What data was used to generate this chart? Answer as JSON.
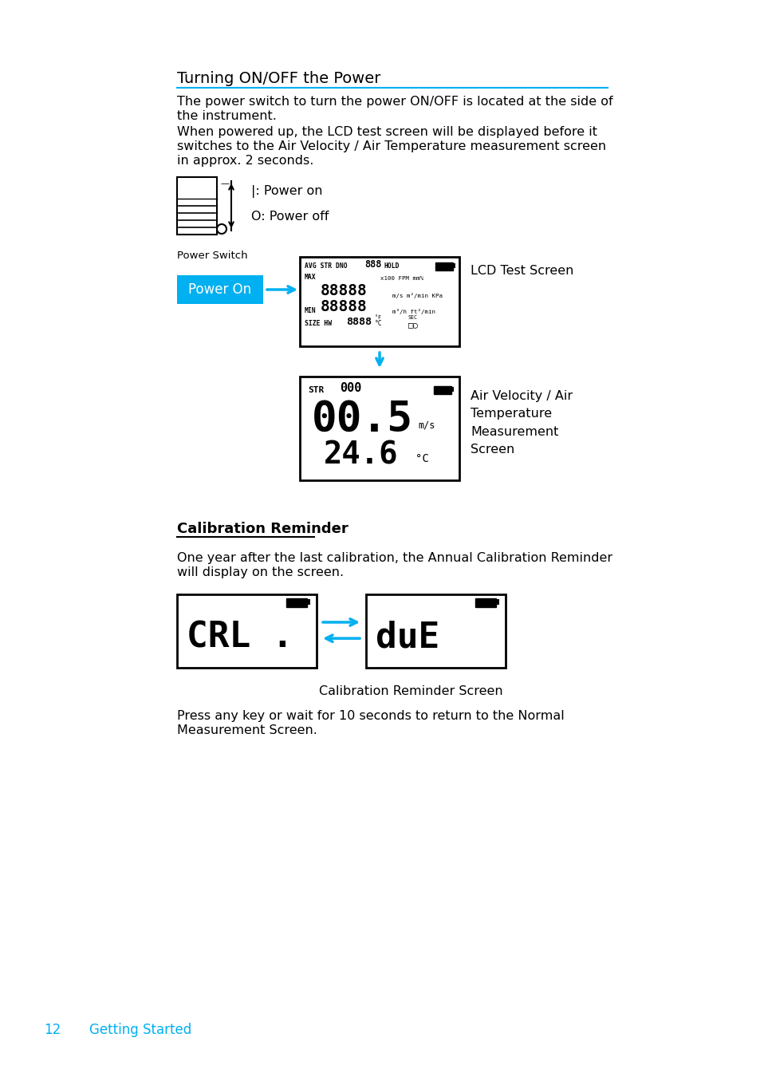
{
  "bg_color": "#ffffff",
  "cyan_color": "#00b0f0",
  "black": "#000000",
  "title": "Turning ON/OFF the Power",
  "para1_line1": "The power switch to turn the power ON/OFF is located at the side of",
  "para1_line2": "the instrument.",
  "para2_line1": "When powered up, the LCD test screen will be displayed before it",
  "para2_line2": "switches to the Air Velocity / Air Temperature measurement screen",
  "para2_line3": "in approx. 2 seconds.",
  "power_on_label1": "|: Power on",
  "power_on_label2": "O: Power off",
  "power_switch_label": "Power Switch",
  "lcd_test_label": "LCD Test Screen",
  "air_vel_label": [
    "Air Velocity / Air",
    "Temperature",
    "Measurement",
    "Screen"
  ],
  "cal_title": "Calibration Reminder",
  "cal_para1": "One year after the last calibration, the Annual Calibration Reminder",
  "cal_para2": "will display on the screen.",
  "cal_screen_label": "Calibration Reminder Screen",
  "press_key1": "Press any key or wait for 10 seconds to return to the Normal",
  "press_key2": "Measurement Screen.",
  "footer_num": "12",
  "footer_text": "Getting Started",
  "power_on_btn_color": "#00b0f0",
  "power_on_btn_text": "Power On",
  "power_on_btn_text_color": "#ffffff"
}
